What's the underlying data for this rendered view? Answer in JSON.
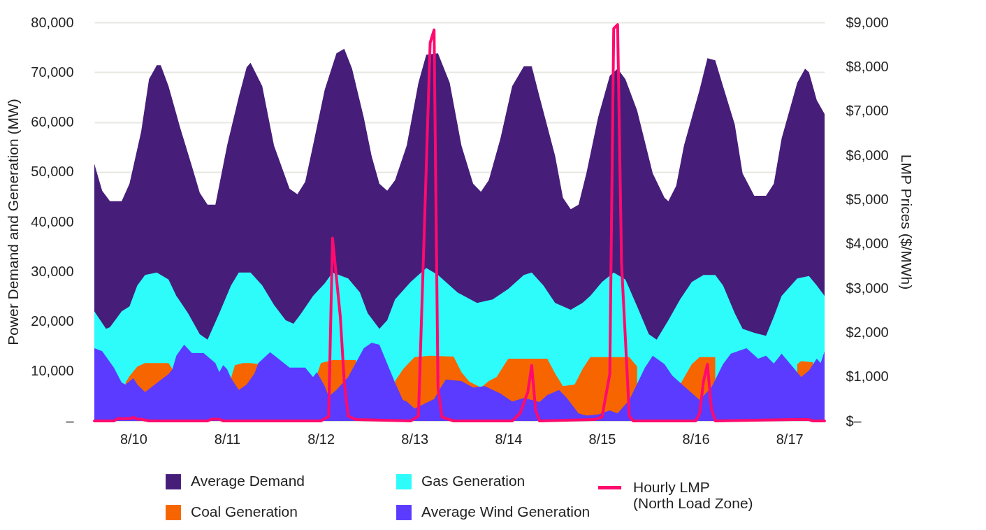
{
  "chart_data": {
    "type": "area",
    "ylabel": "Power Demand and Generation (MW)",
    "y2label": "LMP Prices ($/MWh)",
    "xlim": [
      "--08-09T14:00",
      "--08-17T09:00"
    ],
    "xticks": [
      {
        "value": "--08-10",
        "label": "8/10"
      },
      {
        "value": "--08-11",
        "label": "8/11"
      },
      {
        "value": "--08-12",
        "label": "8/12"
      },
      {
        "value": "--08-13",
        "label": "8/13"
      },
      {
        "value": "--08-14",
        "label": "8/14"
      },
      {
        "value": "--08-15",
        "label": "8/15"
      },
      {
        "value": "--08-16",
        "label": "8/16"
      },
      {
        "value": "--08-17",
        "label": "8/17"
      }
    ],
    "ylim": [
      0,
      80000
    ],
    "yticks": [
      {
        "value": 0,
        "label": "–"
      },
      {
        "value": 10000,
        "label": "10,000"
      },
      {
        "value": 20000,
        "label": "20,000"
      },
      {
        "value": 30000,
        "label": "30,000"
      },
      {
        "value": 40000,
        "label": "40,000"
      },
      {
        "value": 50000,
        "label": "50,000"
      },
      {
        "value": 60000,
        "label": "60,000"
      },
      {
        "value": 70000,
        "label": "70,000"
      },
      {
        "value": 80000,
        "label": "80,000"
      }
    ],
    "y2lim": [
      0,
      9000
    ],
    "y2ticks": [
      {
        "value": 0,
        "label": "$–"
      },
      {
        "value": 1000,
        "label": "$1,000"
      },
      {
        "value": 2000,
        "label": "$2,000"
      },
      {
        "value": 3000,
        "label": "$3,000"
      },
      {
        "value": 4000,
        "label": "$4,000"
      },
      {
        "value": 5000,
        "label": "$5,000"
      },
      {
        "value": 6000,
        "label": "$6,000"
      },
      {
        "value": 7000,
        "label": "$7,000"
      },
      {
        "value": 8000,
        "label": "$8,000"
      },
      {
        "value": 9000,
        "label": "$9,000"
      }
    ],
    "grid": "y",
    "legend": "bottom",
    "series": [
      {
        "name": "Average Demand",
        "color": "#461e7a",
        "x": [
          "--08-09T14:00",
          "--08-09T16:00",
          "--08-09T18:00",
          "--08-09T21:00",
          "--08-09T23:00",
          "--08-10T02:00",
          "--08-10T04:00",
          "--08-10T06:00",
          "--08-10T07:00",
          "--08-10T09:00",
          "--08-10T12:00",
          "--08-10T15:00",
          "--08-10T17:00",
          "--08-10T19:00",
          "--08-10T21:00",
          "--08-11T00:00",
          "--08-11T03:00",
          "--08-11T05:00",
          "--08-11T06:00",
          "--08-11T09:00",
          "--08-11T12:00",
          "--08-11T16:00",
          "--08-11T18:00",
          "--08-11T20:00",
          "--08-11T22:00",
          "--08-12T01:00",
          "--08-12T04:00",
          "--08-12T06:00",
          "--08-12T08:00",
          "--08-12T11:00",
          "--08-12T13:00",
          "--08-12T15:00",
          "--08-12T17:00",
          "--08-12T19:00",
          "--08-12T22:00",
          "--08-13T01:00",
          "--08-13T03:00",
          "--08-13T06:00",
          "--08-13T09:00",
          "--08-13T12:00",
          "--08-13T15:00",
          "--08-13T17:00",
          "--08-13T19:00",
          "--08-13T22:00",
          "--08-14T01:00",
          "--08-14T04:00",
          "--08-14T06:00",
          "--08-14T08:00",
          "--08-14T12:00",
          "--08-14T14:00",
          "--08-14T16:00",
          "--08-14T18:00",
          "--08-14T20:00",
          "--08-14T23:00",
          "--08-15T02:00",
          "--08-15T04:00",
          "--08-15T06:00",
          "--08-15T09:00",
          "--08-15T13:00",
          "--08-15T16:00",
          "--08-15T17:00",
          "--08-15T19:00",
          "--08-15T21:00",
          "--08-16T01:00",
          "--08-16T03:00",
          "--08-16T05:00",
          "--08-16T07:00",
          "--08-16T10:00",
          "--08-16T12:00",
          "--08-16T15:00",
          "--08-16T18:00",
          "--08-16T20:00",
          "--08-16T22:00",
          "--08-17T02:00",
          "--08-17T04:00",
          "--08-17T05:00",
          "--08-17T07:00",
          "--08-17T09:00"
        ],
        "values": [
          51600,
          46200,
          44100,
          44100,
          47600,
          58100,
          68600,
          71400,
          71400,
          67200,
          58800,
          51100,
          45800,
          43400,
          43400,
          55300,
          65100,
          71000,
          71900,
          67200,
          55300,
          46600,
          45500,
          48000,
          55300,
          66500,
          73800,
          74700,
          70700,
          60900,
          53200,
          47600,
          46200,
          48300,
          55300,
          67900,
          73500,
          73800,
          67900,
          55300,
          47600,
          46000,
          48300,
          56700,
          67200,
          71200,
          71200,
          65100,
          53200,
          44800,
          42500,
          43400,
          49700,
          60900,
          69300,
          70700,
          68600,
          62300,
          49700,
          44800,
          44100,
          47200,
          55300,
          66500,
          72800,
          72400,
          67200,
          59500,
          49700,
          45200,
          45200,
          47600,
          56700,
          67900,
          70700,
          70000,
          64400,
          61600
        ]
      },
      {
        "name": "Gas Generation",
        "color": "#2efcfa",
        "x": [
          "--08-09T14:00",
          "--08-09T17:00",
          "--08-09T18:00",
          "--08-09T21:00",
          "--08-09T23:00",
          "--08-10T01:00",
          "--08-10T03:00",
          "--08-10T06:00",
          "--08-10T09:00",
          "--08-10T11:00",
          "--08-10T14:00",
          "--08-10T17:00",
          "--08-10T19:00",
          "--08-10T22:00",
          "--08-11T01:00",
          "--08-11T03:00",
          "--08-11T06:00",
          "--08-11T09:00",
          "--08-11T12:00",
          "--08-11T15:00",
          "--08-11T17:00",
          "--08-11T19:00",
          "--08-11T22:00",
          "--08-12T01:00",
          "--08-12T03:00",
          "--08-12T07:00",
          "--08-12T10:00",
          "--08-12T12:00",
          "--08-12T15:00",
          "--08-12T17:00",
          "--08-12T19:00",
          "--08-12T23:00",
          "--08-13T03:00",
          "--08-13T06:00",
          "--08-13T11:00",
          "--08-13T16:00",
          "--08-13T20:00",
          "--08-14T00:00",
          "--08-14T04:00",
          "--08-14T06:00",
          "--08-14T09:00",
          "--08-14T12:00",
          "--08-14T16:00",
          "--08-14T19:00",
          "--08-14T21:00",
          "--08-15T00:00",
          "--08-15T03:00",
          "--08-15T06:00",
          "--08-15T09:00",
          "--08-15T12:00",
          "--08-15T14:00",
          "--08-15T17:00",
          "--08-15T20:00",
          "--08-15T23:00",
          "--08-16T02:00",
          "--08-16T05:00",
          "--08-16T07:00",
          "--08-16T10:00",
          "--08-16T12:00",
          "--08-16T15:00",
          "--08-16T18:00",
          "--08-16T20:00",
          "--08-16T22:00",
          "--08-17T02:00",
          "--08-17T05:00",
          "--08-17T07:00",
          "--08-17T09:00"
        ],
        "values": [
          22000,
          18500,
          18800,
          22000,
          23000,
          27200,
          29300,
          29800,
          28400,
          25100,
          21600,
          17400,
          16300,
          21600,
          27200,
          29800,
          29800,
          27200,
          23300,
          20200,
          19500,
          21600,
          25100,
          27600,
          29800,
          28600,
          25800,
          21600,
          18500,
          20200,
          24400,
          27900,
          30700,
          29300,
          25800,
          23700,
          24400,
          26500,
          29300,
          29800,
          27200,
          23700,
          22300,
          23700,
          25100,
          27900,
          29800,
          28400,
          23000,
          17400,
          16300,
          20200,
          24400,
          27900,
          29300,
          29300,
          27200,
          21600,
          18500,
          17700,
          17100,
          20900,
          25100,
          28600,
          29100,
          27200,
          25100
        ]
      },
      {
        "name": "Coal Generation",
        "color": "#f76500",
        "x": [
          "--08-09T22:00",
          "--08-09T23:00",
          "--08-10T01:00",
          "--08-10T03:00",
          "--08-10T09:00",
          "--08-10T10:00",
          "--08-10T12:00",
          "--08-11T01:00",
          "--08-11T02:00",
          "--08-11T04:00",
          "--08-11T06:00",
          "--08-11T08:00",
          "--08-11T10:00",
          "--08-11T23:00",
          "--08-12T00:00",
          "--08-12T03:00",
          "--08-12T09:00",
          "--08-12T10:00",
          "--08-12T19:00",
          "--08-12T21:00",
          "--08-12T22:00",
          "--08-13T00:00",
          "--08-13T04:00",
          "--08-13T10:00",
          "--08-13T12:00",
          "--08-13T14:00",
          "--08-13T17:00",
          "--08-13T19:00",
          "--08-13T21:00",
          "--08-14T00:00",
          "--08-14T10:00",
          "--08-14T12:00",
          "--08-14T14:00",
          "--08-14T17:00",
          "--08-14T19:00",
          "--08-14T21:00",
          "--08-15T07:00",
          "--08-15T09:00",
          "--08-15T10:00",
          "--08-15T20:00",
          "--08-15T23:00",
          "--08-16T01:00",
          "--08-16T05:00",
          "--08-16T08:00",
          "--08-17T02:00",
          "--08-17T03:00",
          "--08-17T06:00"
        ],
        "values": [
          7700,
          9000,
          10900,
          11600,
          11600,
          10400,
          null,
          8600,
          11200,
          11600,
          11600,
          11400,
          null,
          9200,
          11600,
          12200,
          12200,
          null,
          8000,
          10300,
          11200,
          12800,
          13100,
          12900,
          9800,
          7900,
          6700,
          8000,
          8800,
          12500,
          12500,
          9500,
          7000,
          7300,
          10400,
          12800,
          12800,
          10900,
          null,
          7300,
          11400,
          12800,
          12800,
          null,
          11400,
          12000,
          11800
        ]
      },
      {
        "name": "Average Wind Generation",
        "color": "#5a3bff",
        "x": [
          "--08-09T14:00",
          "--08-09T16:00",
          "--08-09T19:00",
          "--08-09T21:00",
          "--08-09T22:00",
          "--08-10T00:00",
          "--08-10T01:00",
          "--08-10T03:00",
          "--08-10T06:00",
          "--08-10T09:00",
          "--08-10T10:00",
          "--08-10T11:00",
          "--08-10T13:00",
          "--08-10T15:00",
          "--08-10T18:00",
          "--08-10T21:00",
          "--08-10T22:00",
          "--08-10T23:00",
          "--08-11T00:00",
          "--08-11T01:00",
          "--08-11T03:00",
          "--08-11T05:00",
          "--08-11T07:00",
          "--08-11T08:00",
          "--08-11T11:00",
          "--08-11T12:00",
          "--08-11T16:00",
          "--08-11T20:00",
          "--08-11T22:00",
          "--08-11T23:00",
          "--08-12T01:00",
          "--08-12T02:00",
          "--08-12T04:00",
          "--08-12T07:00",
          "--08-12T11:00",
          "--08-12T13:00",
          "--08-12T15:00",
          "--08-12T19:00",
          "--08-12T21:00",
          "--08-12T22:00",
          "--08-13T00:00",
          "--08-13T05:00",
          "--08-13T06:00",
          "--08-13T08:00",
          "--08-13T12:00",
          "--08-13T15:00",
          "--08-13T18:00",
          "--08-13T22:00",
          "--08-14T01:00",
          "--08-14T04:00",
          "--08-14T08:00",
          "--08-14T10:00",
          "--08-14T13:00",
          "--08-14T15:00",
          "--08-14T18:00",
          "--08-14T20:00",
          "--08-14T23:00",
          "--08-15T02:00",
          "--08-15T04:00",
          "--08-15T07:00",
          "--08-15T11:00",
          "--08-15T13:00",
          "--08-15T16:00",
          "--08-15T18:00",
          "--08-15T21:00",
          "--08-16T01:00",
          "--08-16T04:00",
          "--08-16T07:00",
          "--08-16T09:00",
          "--08-16T13:00",
          "--08-16T16:00",
          "--08-16T18:00",
          "--08-16T20:00",
          "--08-16T22:00",
          "--08-17T01:00",
          "--08-17T03:00",
          "--08-17T05:00",
          "--08-17T07:00",
          "--08-17T08:00",
          "--08-17T09:00"
        ],
        "values": [
          14600,
          14000,
          10700,
          7700,
          7300,
          8600,
          7300,
          5800,
          7600,
          9400,
          10400,
          13100,
          15300,
          13600,
          13600,
          11600,
          9800,
          11200,
          10400,
          8600,
          6200,
          7300,
          9500,
          11600,
          13800,
          13200,
          10700,
          10700,
          8800,
          9800,
          7000,
          4900,
          6200,
          8800,
          14600,
          15700,
          15300,
          7700,
          4200,
          3900,
          2500,
          4400,
          5800,
          8300,
          8000,
          6700,
          7000,
          5500,
          3900,
          4600,
          3800,
          5200,
          6200,
          4600,
          1500,
          1100,
          1300,
          2100,
          1500,
          4200,
          10700,
          13100,
          11400,
          9100,
          7000,
          4200,
          6700,
          11400,
          13500,
          14600,
          12500,
          13100,
          11500,
          13500,
          10700,
          8800,
          10100,
          12500,
          11600,
          14000
        ]
      },
      {
        "name": "Hourly LMP (North Load Zone)",
        "color": "#ff0a6e",
        "type": "line",
        "axis": "y2",
        "x": [
          "--08-09T14:00",
          "--08-09T19:00",
          "--08-09T20:00",
          "--08-09T23:00",
          "--08-10T00:00",
          "--08-10T01:00",
          "--08-10T02:00",
          "--08-10T04:00",
          "--08-10T19:00",
          "--08-10T20:00",
          "--08-10T22:00",
          "--08-10T23:00",
          "--08-12T00:00",
          "--08-12T02:00",
          "--08-12T03:00",
          "--08-12T05:00",
          "--08-12T06:00",
          "--08-12T07:00",
          "--08-12T09:00",
          "--08-12T23:00",
          "--08-13T01:00",
          "--08-13T04:00",
          "--08-13T05:00",
          "--08-13T06:00",
          "--08-13T07:00",
          "--08-13T10:00",
          "--08-14T01:00",
          "--08-14T03:00",
          "--08-14T05:00",
          "--08-14T06:00",
          "--08-14T07:00",
          "--08-14T08:00",
          "--08-14T22:00",
          "--08-15T00:00",
          "--08-15T02:00",
          "--08-15T03:00",
          "--08-15T04:00",
          "--08-15T05:00",
          "--08-15T07:00",
          "--08-15T08:00",
          "--08-16T00:00",
          "--08-16T01:00",
          "--08-16T02:00",
          "--08-16T03:00",
          "--08-16T04:00",
          "--08-16T05:00",
          "--08-17T01:00",
          "--08-17T05:00",
          "--08-17T06:00",
          "--08-17T09:00"
        ],
        "values": [
          0,
          0,
          50,
          50,
          80,
          40,
          40,
          0,
          0,
          40,
          40,
          0,
          0,
          100,
          4130,
          2340,
          880,
          110,
          30,
          0,
          110,
          8540,
          8830,
          760,
          90,
          0,
          0,
          170,
          650,
          1250,
          240,
          0,
          30,
          90,
          1060,
          8860,
          8950,
          3570,
          110,
          0,
          0,
          170,
          900,
          1280,
          280,
          0,
          30,
          30,
          0,
          0
        ]
      }
    ]
  }
}
